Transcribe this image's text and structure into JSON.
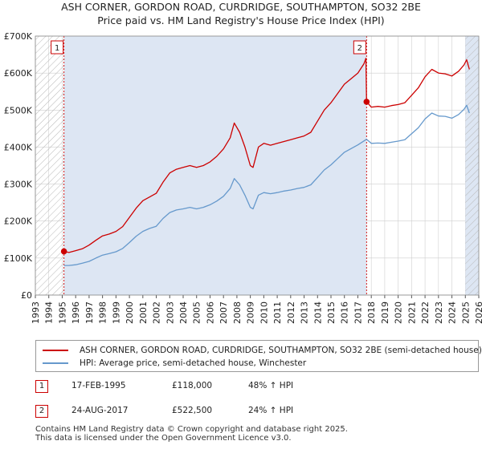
{
  "title_line1": "ASH CORNER, GORDON ROAD, CURDRIDGE, SOUTHAMPTON, SO32 2BE",
  "title_line2": "Price paid vs. HM Land Registry's House Price Index (HPI)",
  "colors": {
    "property": "#cc0000",
    "hpi": "#6699cc",
    "shade": "#dde6f3",
    "grid": "#ffffff",
    "marker_border": "#cc0000"
  },
  "legend": {
    "property_label": "ASH CORNER, GORDON ROAD, CURDRIDGE, SOUTHAMPTON, SO32 2BE (semi-detached house)",
    "hpi_label": "HPI: Average price, semi-detached house, Winchester"
  },
  "sales": [
    {
      "num": "1",
      "date": "17-FEB-1995",
      "price": "£118,000",
      "hpi_change": "48% ↑ HPI"
    },
    {
      "num": "2",
      "date": "24-AUG-2017",
      "price": "£522,500",
      "hpi_change": "24% ↑ HPI"
    }
  ],
  "footer": {
    "line1": "Contains HM Land Registry data © Crown copyright and database right 2025.",
    "line2": "This data is licensed under the Open Government Licence v3.0."
  },
  "chart_data": {
    "type": "line",
    "title": "ASH CORNER, GORDON ROAD, CURDRIDGE, SOUTHAMPTON, SO32 2BE - Price paid vs. HM Land Registry's House Price Index (HPI)",
    "xlim": [
      1993,
      2026
    ],
    "ylim": [
      0,
      700000
    ],
    "x_ticks": [
      1993,
      1994,
      1995,
      1996,
      1997,
      1998,
      1999,
      2000,
      2001,
      2002,
      2003,
      2004,
      2005,
      2006,
      2007,
      2008,
      2009,
      2010,
      2011,
      2012,
      2013,
      2014,
      2015,
      2016,
      2017,
      2018,
      2019,
      2020,
      2021,
      2022,
      2023,
      2024,
      2025,
      2026
    ],
    "x_tick_labels": [
      "1993",
      "1994",
      "1995",
      "1996",
      "1997",
      "1998",
      "1999",
      "2000",
      "2001",
      "2002",
      "2003",
      "2004",
      "2005",
      "2006",
      "2007",
      "2008",
      "2009",
      "2010",
      "2011",
      "2012",
      "2013",
      "2014",
      "2015",
      "2016",
      "2017",
      "2018",
      "2019",
      "2020",
      "2021",
      "2022",
      "2023",
      "2024",
      "2025",
      "2026"
    ],
    "y_ticks": [
      0,
      100000,
      200000,
      300000,
      400000,
      500000,
      600000,
      700000
    ],
    "y_tick_labels": [
      "£0",
      "£100K",
      "£200K",
      "£300K",
      "£400K",
      "£500K",
      "£600K",
      "£700K"
    ],
    "shaded_ranges": [
      [
        1995.13,
        2017.65
      ],
      [
        2025.0,
        2026.0
      ]
    ],
    "hatched_ranges": [
      [
        1993.0,
        1995.13
      ],
      [
        2025.0,
        2026.0
      ]
    ],
    "sale_markers": [
      {
        "label": "1",
        "x": 1995.13,
        "y": 118000
      },
      {
        "label": "2",
        "x": 2017.65,
        "y": 522500
      }
    ],
    "series": [
      {
        "name": "ASH CORNER, GORDON ROAD, CURDRIDGE, SOUTHAMPTON, SO32 2BE (semi-detached house)",
        "color": "#cc0000",
        "x": [
          1995.13,
          1995.5,
          1996.0,
          1996.5,
          1997.0,
          1997.5,
          1998.0,
          1998.5,
          1999.0,
          1999.5,
          2000.0,
          2000.5,
          2001.0,
          2001.5,
          2002.0,
          2002.5,
          2003.0,
          2003.5,
          2004.0,
          2004.5,
          2005.0,
          2005.5,
          2006.0,
          2006.5,
          2007.0,
          2007.5,
          2007.8,
          2008.2,
          2008.6,
          2009.0,
          2009.2,
          2009.6,
          2010.0,
          2010.5,
          2011.0,
          2011.5,
          2012.0,
          2012.5,
          2013.0,
          2013.5,
          2014.0,
          2014.5,
          2015.0,
          2015.5,
          2016.0,
          2016.5,
          2017.0,
          2017.45,
          2017.6,
          2017.65,
          2018.0,
          2018.5,
          2019.0,
          2019.5,
          2020.0,
          2020.5,
          2021.0,
          2021.5,
          2022.0,
          2022.5,
          2023.0,
          2023.5,
          2024.0,
          2024.5,
          2024.9,
          2025.1,
          2025.3
        ],
        "y": [
          118000,
          115000,
          120000,
          125000,
          135000,
          148000,
          160000,
          165000,
          172000,
          185000,
          210000,
          235000,
          255000,
          265000,
          275000,
          305000,
          330000,
          340000,
          345000,
          350000,
          345000,
          350000,
          360000,
          375000,
          395000,
          425000,
          465000,
          440000,
          400000,
          350000,
          345000,
          400000,
          410000,
          405000,
          410000,
          415000,
          420000,
          425000,
          430000,
          440000,
          470000,
          500000,
          520000,
          545000,
          570000,
          585000,
          600000,
          625000,
          640000,
          522500,
          508000,
          510000,
          508000,
          512000,
          515000,
          520000,
          540000,
          560000,
          590000,
          610000,
          600000,
          598000,
          592000,
          605000,
          622000,
          636000,
          610000
        ]
      },
      {
        "name": "HPI: Average price, semi-detached house, Winchester",
        "color": "#6699cc",
        "x": [
          1995.13,
          1995.5,
          1996.0,
          1996.5,
          1997.0,
          1997.5,
          1998.0,
          1998.5,
          1999.0,
          1999.5,
          2000.0,
          2000.5,
          2001.0,
          2001.5,
          2002.0,
          2002.5,
          2003.0,
          2003.5,
          2004.0,
          2004.5,
          2005.0,
          2005.5,
          2006.0,
          2006.5,
          2007.0,
          2007.5,
          2007.8,
          2008.2,
          2008.6,
          2009.0,
          2009.2,
          2009.6,
          2010.0,
          2010.5,
          2011.0,
          2011.5,
          2012.0,
          2012.5,
          2013.0,
          2013.5,
          2014.0,
          2014.5,
          2015.0,
          2015.5,
          2016.0,
          2016.5,
          2017.0,
          2017.65,
          2018.0,
          2018.5,
          2019.0,
          2019.5,
          2020.0,
          2020.5,
          2021.0,
          2021.5,
          2022.0,
          2022.5,
          2023.0,
          2023.5,
          2024.0,
          2024.5,
          2024.9,
          2025.1,
          2025.3
        ],
        "y": [
          80000,
          80000,
          82000,
          86000,
          91000,
          100000,
          108000,
          112000,
          117000,
          126000,
          142000,
          159000,
          172000,
          180000,
          186000,
          207000,
          223000,
          230000,
          233000,
          237000,
          233000,
          237000,
          244000,
          254000,
          267000,
          288000,
          315000,
          298000,
          270000,
          237000,
          233000,
          270000,
          277000,
          274000,
          277000,
          281000,
          284000,
          288000,
          291000,
          298000,
          318000,
          338000,
          352000,
          369000,
          386000,
          396000,
          406000,
          421000,
          410000,
          411000,
          410000,
          413000,
          416000,
          420000,
          436000,
          452000,
          476000,
          492000,
          484000,
          483000,
          478000,
          488000,
          502000,
          513000,
          492000
        ]
      }
    ]
  }
}
